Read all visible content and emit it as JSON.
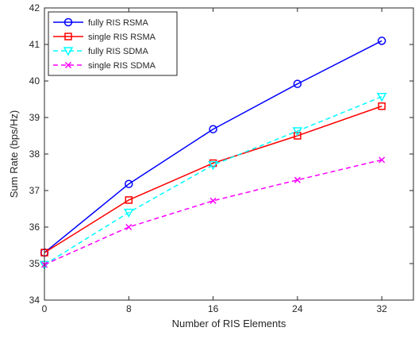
{
  "chart_data": {
    "type": "line",
    "title": "",
    "xlabel": "Number of RIS Elements",
    "ylabel": "Sum Rate (bps/Hz)",
    "x": [
      0,
      8,
      16,
      24,
      32
    ],
    "xlim": [
      0,
      35
    ],
    "ylim": [
      34,
      42
    ],
    "xticks": [
      0,
      8,
      16,
      24,
      32
    ],
    "yticks": [
      34,
      35,
      36,
      37,
      38,
      39,
      40,
      41,
      42
    ],
    "grid": false,
    "box": true,
    "legend_position": "top-left",
    "series": [
      {
        "name": "fully RIS RSMA",
        "values": [
          35.3,
          37.18,
          38.68,
          39.92,
          41.1
        ],
        "color": "#0000ff",
        "dash": "solid",
        "marker": "circle"
      },
      {
        "name": "single RIS RSMA",
        "values": [
          35.3,
          36.74,
          37.75,
          38.5,
          39.31
        ],
        "color": "#ff0000",
        "dash": "solid",
        "marker": "square"
      },
      {
        "name": "fully RIS SDMA",
        "values": [
          34.97,
          36.4,
          37.7,
          38.63,
          39.57
        ],
        "color": "#00ffff",
        "dash": "dashed",
        "marker": "triangle-down"
      },
      {
        "name": "single RIS SDMA",
        "values": [
          34.97,
          36.0,
          36.72,
          37.29,
          37.84
        ],
        "color": "#ff00ff",
        "dash": "dashed",
        "marker": "x"
      }
    ]
  }
}
